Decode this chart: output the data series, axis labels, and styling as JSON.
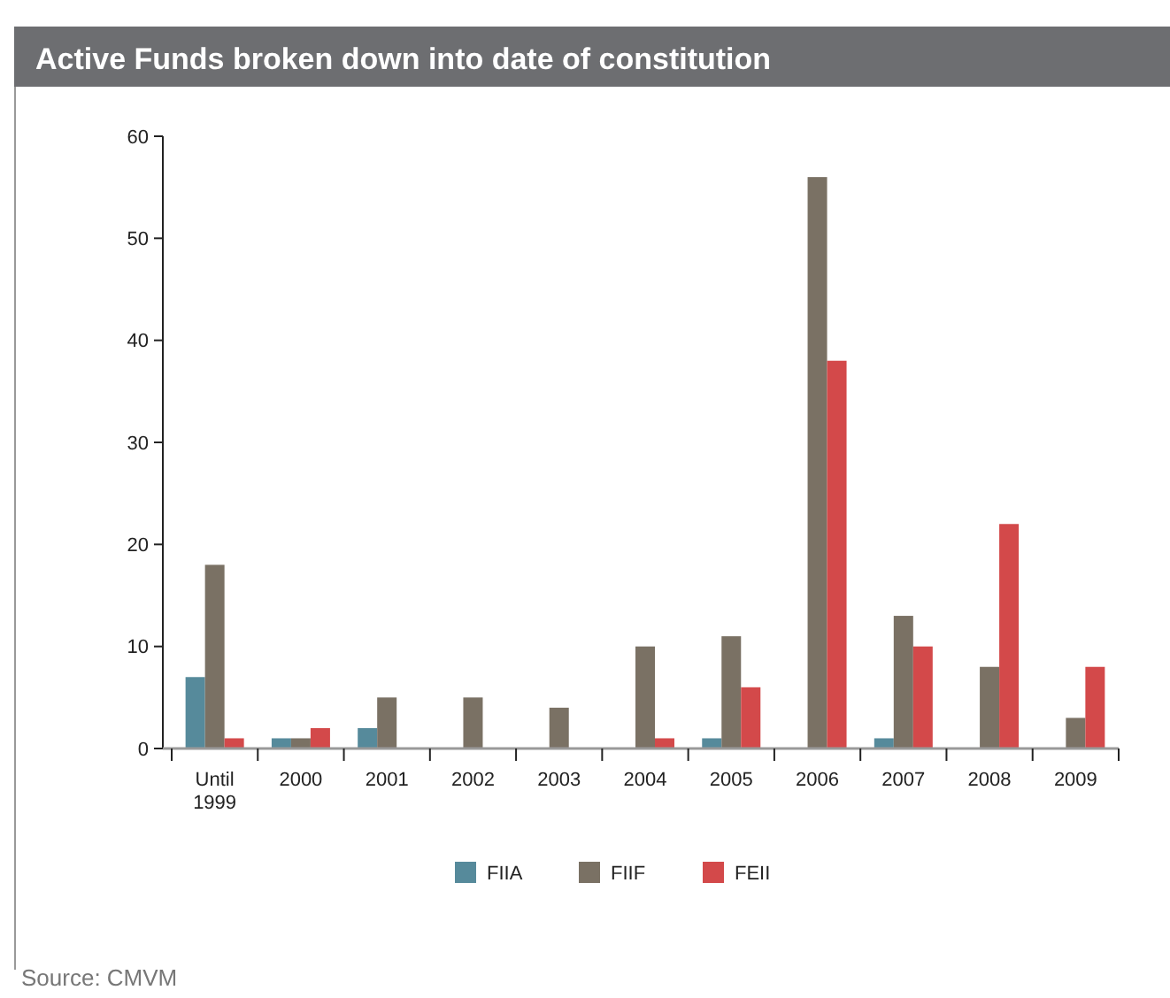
{
  "chart_data": {
    "type": "bar",
    "title": "Active Funds broken down into date of constitution",
    "categories": [
      "Until\n1999",
      "2000",
      "2001",
      "2002",
      "2003",
      "2004",
      "2005",
      "2006",
      "2007",
      "2008",
      "2009"
    ],
    "series": [
      {
        "name": "FIIA",
        "color": "#568a9b",
        "values": [
          7,
          1,
          2,
          0,
          0,
          0,
          1,
          0,
          1,
          0,
          0
        ]
      },
      {
        "name": "FIIF",
        "color": "#7a7164",
        "values": [
          18,
          1,
          5,
          5,
          4,
          10,
          11,
          56,
          13,
          8,
          3
        ]
      },
      {
        "name": "FEII",
        "color": "#d3494a",
        "values": [
          1,
          2,
          0,
          0,
          0,
          1,
          6,
          38,
          10,
          22,
          8
        ]
      }
    ],
    "ylim": [
      0,
      60
    ],
    "yticks": [
      0,
      10,
      20,
      30,
      40,
      50,
      60
    ],
    "grid": false,
    "legend": "bottom",
    "annotations": [
      "Source: CMVM"
    ]
  }
}
